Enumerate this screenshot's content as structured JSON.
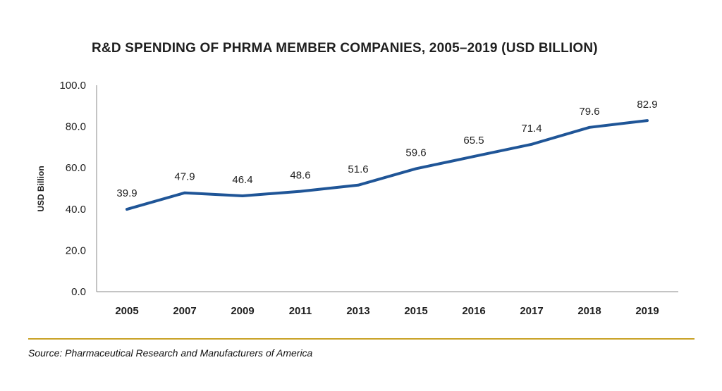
{
  "chart_data": {
    "type": "line",
    "title": "R&D SPENDING OF PHRMA MEMBER COMPANIES, 2005–2019 (USD BILLION)",
    "xlabel": "",
    "ylabel": "USD Billion",
    "categories": [
      "2005",
      "2007",
      "2009",
      "2011",
      "2013",
      "2015",
      "2016",
      "2017",
      "2018",
      "2019"
    ],
    "series": [
      {
        "values": [
          39.9,
          47.9,
          46.4,
          48.6,
          51.6,
          59.6,
          65.5,
          71.4,
          79.6,
          82.9
        ]
      }
    ],
    "data_labels": [
      "39.9",
      "47.9",
      "46.4",
      "48.6",
      "51.6",
      "59.6",
      "65.5",
      "71.4",
      "79.6",
      "82.9"
    ],
    "ylim": [
      0,
      100
    ],
    "yticks": [
      0,
      20,
      40,
      60,
      80,
      100
    ],
    "ytick_labels": [
      "0.0",
      "20.0",
      "40.0",
      "60.0",
      "80.0",
      "100.0"
    ],
    "grid": false,
    "legend": "none",
    "line_color": "#1f5597"
  },
  "source": "Source: Pharmaceutical Research and Manufacturers of America",
  "colors": {
    "rule": "#c9a227",
    "axis": "#888888",
    "text": "#1f1f1f"
  }
}
